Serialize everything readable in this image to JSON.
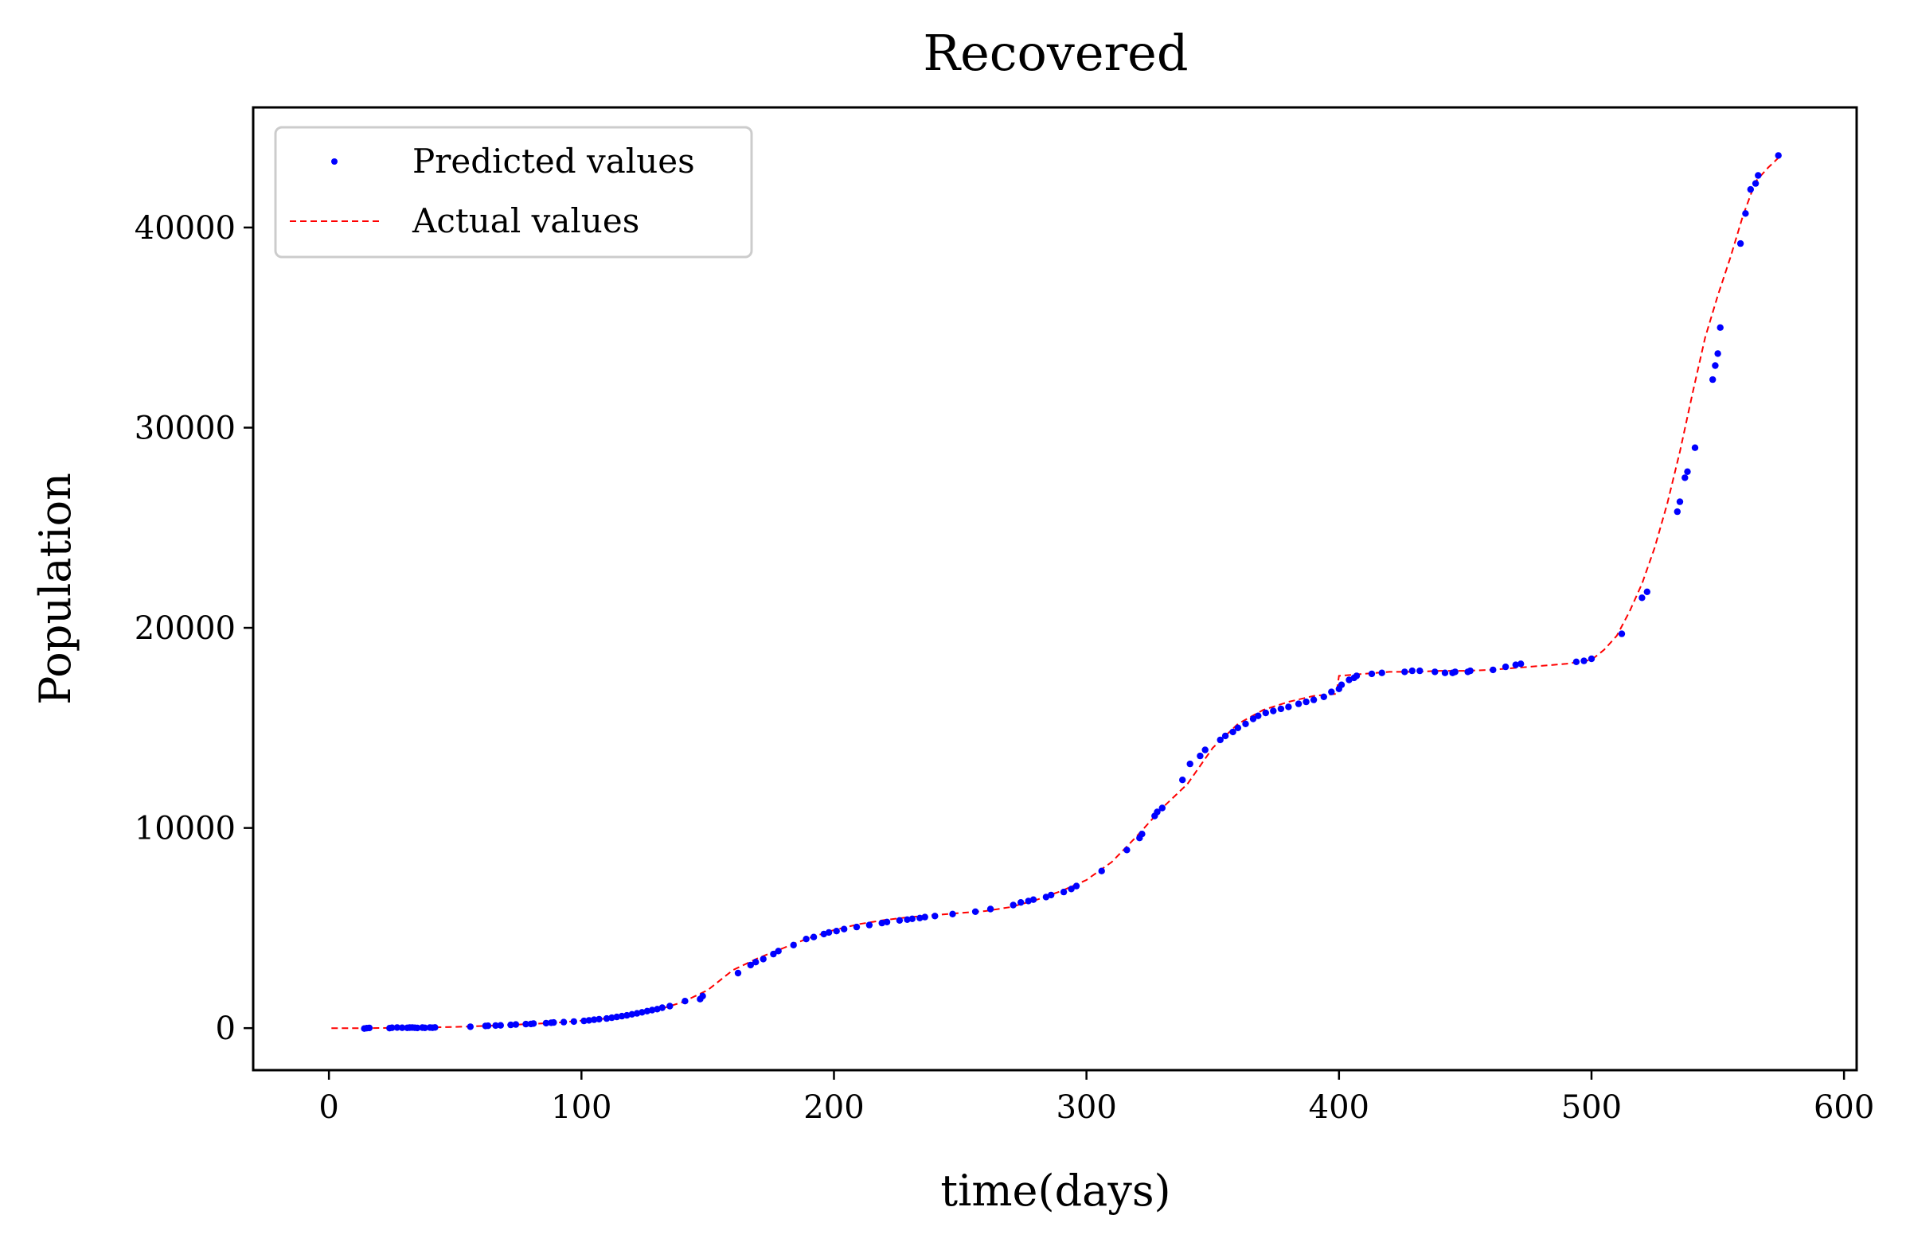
{
  "chart_data": {
    "type": "line",
    "title": "Recovered",
    "xlabel": "time(days)",
    "ylabel": "Population",
    "xlim": [
      -30,
      605
    ],
    "ylim": [
      -2100,
      46000
    ],
    "xticks": [
      0,
      100,
      200,
      300,
      400,
      500,
      600
    ],
    "yticks": [
      0,
      10000,
      20000,
      30000,
      40000
    ],
    "legend_position": "upper-left",
    "grid": false,
    "colors": {
      "predicted": "#0000ff",
      "actual": "#ff0000"
    },
    "series": [
      {
        "name": "Predicted values",
        "style": "dots",
        "x": [
          14,
          15,
          16,
          24,
          25,
          27,
          29,
          31,
          32,
          33,
          34,
          35,
          37,
          38,
          40,
          41,
          42,
          56,
          62,
          63,
          66,
          68,
          72,
          74,
          78,
          80,
          81,
          86,
          88,
          89,
          93,
          97,
          101,
          103,
          105,
          107,
          110,
          112,
          114,
          116,
          118,
          120,
          122,
          124,
          126,
          128,
          130,
          132,
          135,
          141,
          147,
          148,
          162,
          167,
          169,
          172,
          176,
          178,
          184,
          189,
          192,
          196,
          198,
          201,
          204,
          209,
          214,
          219,
          221,
          226,
          229,
          231,
          234,
          236,
          240,
          247,
          256,
          262,
          271,
          274,
          277,
          279,
          284,
          286,
          291,
          294,
          296,
          306,
          316,
          321,
          322,
          327,
          328,
          330,
          338,
          341,
          345,
          347,
          353,
          355,
          358,
          360,
          363,
          366,
          368,
          371,
          374,
          377,
          380,
          384,
          387,
          390,
          394,
          397,
          400,
          401,
          404,
          406,
          407,
          413,
          417,
          426,
          429,
          432,
          438,
          442,
          445,
          446,
          451,
          452,
          461,
          466,
          470,
          472,
          494,
          497,
          500,
          512,
          520,
          522,
          534,
          535,
          537,
          538,
          541,
          548,
          549,
          550,
          551,
          559,
          561,
          563,
          565,
          566,
          574
        ],
        "y": [
          -20,
          0,
          10,
          0,
          20,
          30,
          20,
          15,
          25,
          30,
          20,
          10,
          25,
          15,
          30,
          20,
          35,
          70,
          110,
          120,
          130,
          140,
          160,
          180,
          200,
          210,
          230,
          250,
          270,
          280,
          300,
          330,
          360,
          390,
          420,
          450,
          480,
          520,
          560,
          600,
          640,
          690,
          740,
          790,
          850,
          900,
          950,
          1020,
          1100,
          1350,
          1450,
          1600,
          2750,
          3150,
          3300,
          3450,
          3700,
          3850,
          4150,
          4450,
          4550,
          4700,
          4780,
          4850,
          4950,
          5050,
          5150,
          5250,
          5300,
          5380,
          5420,
          5460,
          5500,
          5550,
          5600,
          5700,
          5820,
          5950,
          6150,
          6280,
          6350,
          6420,
          6550,
          6650,
          6800,
          6950,
          7100,
          7850,
          8900,
          9500,
          9700,
          10600,
          10800,
          11000,
          12400,
          13200,
          13600,
          13900,
          14400,
          14600,
          14800,
          15000,
          15200,
          15450,
          15600,
          15750,
          15850,
          15950,
          16050,
          16200,
          16300,
          16400,
          16550,
          16800,
          16950,
          17150,
          17400,
          17500,
          17600,
          17700,
          17750,
          17800,
          17850,
          17850,
          17800,
          17750,
          17750,
          17800,
          17800,
          17850,
          17900,
          18050,
          18150,
          18200,
          18300,
          18350,
          18450,
          19700,
          21500,
          21800,
          25800,
          26300,
          27500,
          27800,
          29000,
          32400,
          33100,
          33700,
          35000,
          39200,
          40700,
          41900,
          42200,
          42600,
          43600
        ]
      },
      {
        "name": "Actual values",
        "style": "dashed-line",
        "x": [
          1,
          14,
          30,
          50,
          70,
          90,
          110,
          130,
          140,
          150,
          160,
          170,
          180,
          190,
          200,
          210,
          220,
          230,
          240,
          250,
          260,
          270,
          280,
          290,
          300,
          310,
          320,
          330,
          340,
          350,
          360,
          370,
          380,
          390,
          399,
          400,
          410,
          420,
          430,
          440,
          450,
          460,
          470,
          480,
          490,
          500,
          505,
          510,
          515,
          520,
          525,
          530,
          535,
          540,
          545,
          550,
          555,
          560,
          565,
          570,
          575
        ],
        "y": [
          0,
          0,
          20,
          60,
          150,
          270,
          480,
          900,
          1300,
          1900,
          2900,
          3500,
          4000,
          4500,
          4900,
          5200,
          5400,
          5550,
          5650,
          5750,
          5850,
          6050,
          6400,
          6850,
          7400,
          8300,
          9600,
          11000,
          12200,
          14000,
          15200,
          15900,
          16300,
          16600,
          16700,
          17600,
          17700,
          17800,
          17800,
          17850,
          17850,
          17900,
          18000,
          18100,
          18200,
          18400,
          18900,
          19600,
          20800,
          22200,
          24000,
          26200,
          28800,
          31700,
          34500,
          36600,
          38500,
          40600,
          42300,
          43000,
          43600
        ]
      }
    ]
  }
}
